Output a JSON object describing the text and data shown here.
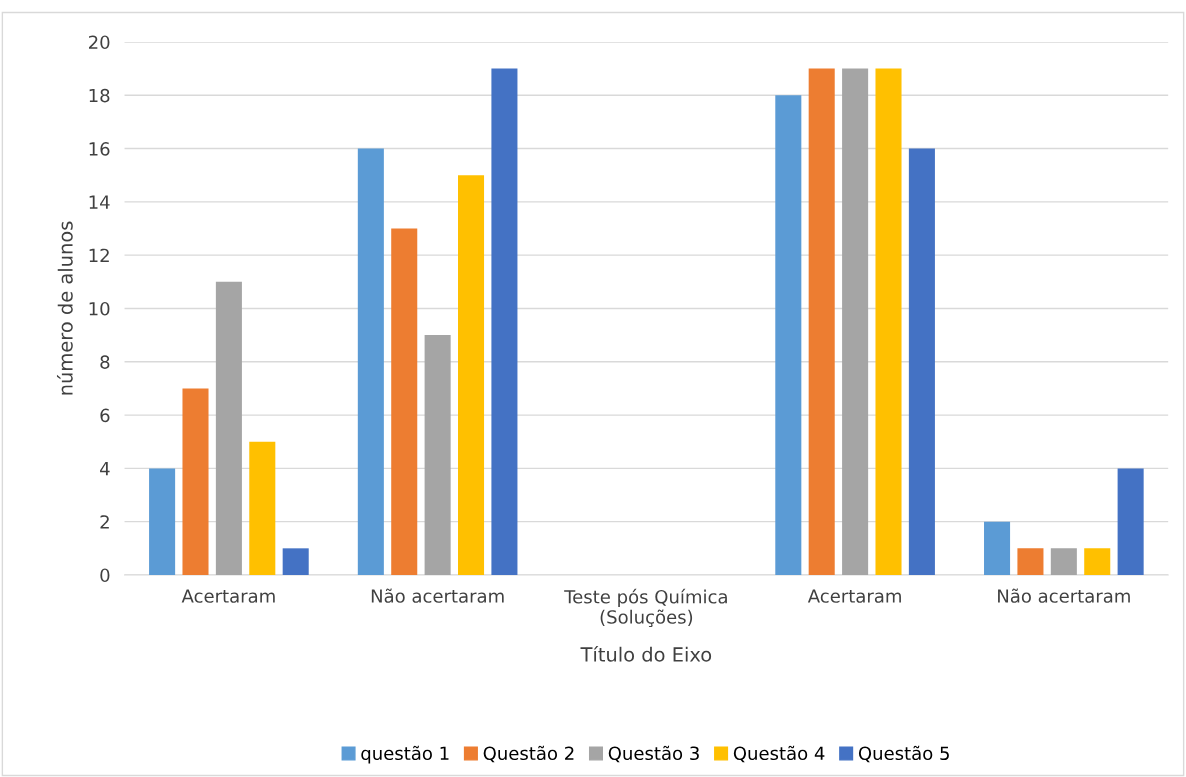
{
  "chart_data": {
    "type": "bar",
    "ylabel": "número de alunos",
    "xlabel": "Título do Eixo",
    "categories": [
      "Acertaram",
      "Não acertaram",
      "Teste pós Química\n(Soluções)",
      "Acertaram",
      "Não acertaram"
    ],
    "series": [
      {
        "name": "questão 1",
        "color": "#5b9bd5",
        "values": [
          4,
          16,
          null,
          18,
          2
        ]
      },
      {
        "name": "Questão 2",
        "color": "#ed7d31",
        "values": [
          7,
          13,
          null,
          19,
          1
        ]
      },
      {
        "name": "Questão 3",
        "color": "#a5a5a5",
        "values": [
          11,
          9,
          null,
          19,
          1
        ]
      },
      {
        "name": "Questão 4",
        "color": "#ffc000",
        "values": [
          5,
          15,
          null,
          19,
          1
        ]
      },
      {
        "name": "Questão 5",
        "color": "#4472c4",
        "values": [
          1,
          19,
          null,
          16,
          4
        ]
      }
    ],
    "ylim": [
      0,
      20
    ],
    "yticks": [
      0,
      2,
      4,
      6,
      8,
      10,
      12,
      14,
      16,
      18,
      20
    ],
    "grid": "y",
    "legend": "bottom"
  }
}
